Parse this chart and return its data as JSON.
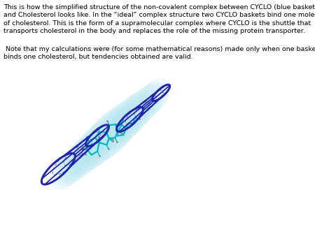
{
  "text1": "This is how the simplified structure of the non-covalent complex between CYCLO (blue baskets)\nand Cholesterol looks like. In the “ideal” complex structure two CYCLO baskets bind one molecule\nof cholesterol. This is the form of a supramolecular complex where CYCLO is the shuttle that\ntransports cholesterol in the body and replaces the role of the missing protein transporter.",
  "text2": " Note that my calculations were (for some mathematical reasons) made only when one basket\nbinds one cholesterol, but tendencies obtained are valid.",
  "basket_color": "#2222aa",
  "molecule_color": "#00bbbb",
  "hydrogen_color": "#999999",
  "cloud_color": "#99ddee",
  "bg_color": "#ffffff",
  "text_color": "#000000",
  "text_fontsize": 6.8,
  "fig_width": 4.5,
  "fig_height": 3.38,
  "dpi": 100
}
